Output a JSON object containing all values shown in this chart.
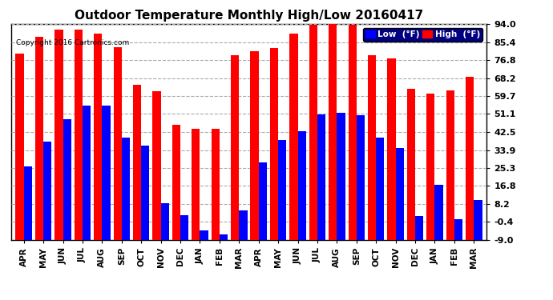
{
  "title": "Outdoor Temperature Monthly High/Low 20160417",
  "copyright": "Copyright 2016 Cartronics.com",
  "categories": [
    "APR",
    "MAY",
    "JUN",
    "JUL",
    "AUG",
    "SEP",
    "OCT",
    "NOV",
    "DEC",
    "JAN",
    "FEB",
    "MAR",
    "APR",
    "MAY",
    "JUN",
    "JUL",
    "AUG",
    "SEP",
    "OCT",
    "NOV",
    "DEC",
    "JAN",
    "FEB",
    "MAR"
  ],
  "high_values": [
    80.0,
    88.0,
    91.5,
    91.5,
    89.5,
    83.0,
    65.0,
    62.0,
    46.0,
    44.0,
    44.0,
    79.0,
    81.0,
    82.5,
    89.5,
    93.5,
    94.0,
    93.5,
    79.0,
    77.5,
    63.0,
    61.0,
    62.5,
    69.0
  ],
  "low_values": [
    26.0,
    38.0,
    48.5,
    55.0,
    55.0,
    40.0,
    36.0,
    8.5,
    3.0,
    -4.5,
    -6.5,
    5.0,
    28.0,
    38.5,
    43.0,
    51.0,
    51.5,
    50.5,
    40.0,
    35.0,
    2.5,
    17.5,
    1.0,
    10.0
  ],
  "bar_color_high": "#ff0000",
  "bar_color_low": "#0000ff",
  "bg_color": "#ffffff",
  "grid_color": "#aaaaaa",
  "yticks": [
    -9.0,
    -0.4,
    8.2,
    16.8,
    25.3,
    33.9,
    42.5,
    51.1,
    59.7,
    68.2,
    76.8,
    85.4,
    94.0
  ],
  "ymin": -9.0,
  "ymax": 94.0,
  "title_fontsize": 11,
  "legend_label_low": "Low  (°F)",
  "legend_label_high": "High  (°F)"
}
